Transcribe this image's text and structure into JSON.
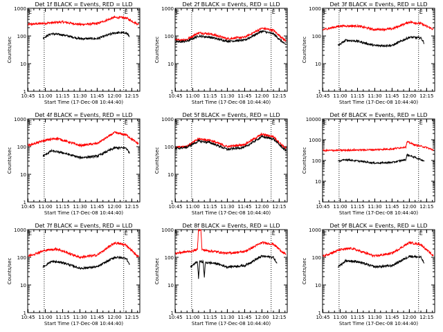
{
  "figure": {
    "background": "#ffffff",
    "axis_color": "#000000",
    "series_colors": {
      "events": "#000000",
      "lld": "#ff0000"
    },
    "panel_titles": [
      "Det 1f BLACK = Events, RED = LLD",
      "Det 2f BLACK = Events, RED = LLD",
      "Det 3f BLACK = Events, RED = LLD",
      "Det 4f BLACK = Events, RED = LLD",
      "Det 5f BLACK = Events, RED = LLD",
      "Det 6f BLACK = Events, RED = LLD",
      "Det 7f BLACK = Events, RED = LLD",
      "Det 8f BLACK = Events, RED = LLD",
      "Det 9f BLACK = Events, RED = LLD"
    ],
    "xlabel": "Start Time (17-Dec-08 10:44:40)",
    "ylabel": "Counts/sec",
    "marker_labels": [
      "E",
      "E"
    ]
  },
  "chart_data": [
    {
      "type": "line",
      "title": "Det 1f BLACK = Events, RED = LLD",
      "xlabel": "Start Time (17-Dec-08 10:44:40)",
      "ylabel": "Counts/sec",
      "x_ticks": [
        "10:45",
        "11:00",
        "11:15",
        "11:30",
        "11:45",
        "12:00",
        "12:15"
      ],
      "y_ticks": [
        "1",
        "10",
        "100",
        "1000"
      ],
      "yscale": "log",
      "ylim": [
        1,
        1000
      ],
      "vlines": [
        "10:59",
        "12:08"
      ],
      "markers": [
        {
          "label": "E",
          "x": "12:08"
        }
      ],
      "series": [
        {
          "color": "#ff0000",
          "range": [
            "10:45",
            "12:21"
          ],
          "x": [
            "10:45",
            "11:00",
            "11:15",
            "11:30",
            "11:45",
            "12:00",
            "12:10",
            "12:20"
          ],
          "values": [
            260,
            290,
            320,
            260,
            280,
            470,
            450,
            270
          ]
        },
        {
          "color": "#000000",
          "range": [
            "10:58",
            "12:13"
          ],
          "x": [
            "10:58",
            "11:05",
            "11:15",
            "11:30",
            "11:45",
            "12:00",
            "12:10",
            "12:13"
          ],
          "values": [
            85,
            120,
            110,
            80,
            80,
            130,
            130,
            100
          ]
        }
      ]
    },
    {
      "type": "line",
      "title": "Det 2f BLACK = Events, RED = LLD",
      "xlabel": "Start Time (17-Dec-08 10:44:40)",
      "ylabel": "Counts/sec",
      "x_ticks": [
        "10:45",
        "11:00",
        "11:15",
        "11:30",
        "11:45",
        "12:00",
        "12:15"
      ],
      "y_ticks": [
        "1",
        "10",
        "100",
        "1000"
      ],
      "yscale": "log",
      "ylim": [
        1,
        1000
      ],
      "vlines": [
        "10:59",
        "12:08"
      ],
      "markers": [
        {
          "label": "E",
          "x": "12:08"
        }
      ],
      "series": [
        {
          "color": "#ff0000",
          "range": [
            "10:45",
            "12:21"
          ],
          "x": [
            "10:45",
            "10:55",
            "11:05",
            "11:15",
            "11:30",
            "11:45",
            "12:00",
            "12:10",
            "12:20"
          ],
          "values": [
            70,
            75,
            130,
            120,
            80,
            90,
            190,
            160,
            70
          ]
        },
        {
          "color": "#000000",
          "range": [
            "10:45",
            "12:21"
          ],
          "x": [
            "10:45",
            "10:55",
            "11:05",
            "11:15",
            "11:30",
            "11:45",
            "12:00",
            "12:10",
            "12:20"
          ],
          "values": [
            60,
            65,
            100,
            90,
            65,
            70,
            150,
            120,
            50
          ]
        }
      ]
    },
    {
      "type": "line",
      "title": "Det 3f BLACK = Events, RED = LLD",
      "xlabel": "Start Time (17-Dec-08 10:44:40)",
      "ylabel": "Counts/sec",
      "x_ticks": [
        "10:45",
        "11:00",
        "11:15",
        "11:30",
        "11:45",
        "12:00",
        "12:15"
      ],
      "y_ticks": [
        "1",
        "10",
        "100",
        "1000"
      ],
      "yscale": "log",
      "ylim": [
        1,
        1000
      ],
      "vlines": [
        "10:59",
        "12:08"
      ],
      "markers": [
        {
          "label": "E",
          "x": "12:08"
        }
      ],
      "series": [
        {
          "color": "#ff0000",
          "range": [
            "10:45",
            "12:21"
          ],
          "x": [
            "10:45",
            "11:00",
            "11:15",
            "11:30",
            "11:45",
            "12:00",
            "12:10",
            "12:20"
          ],
          "values": [
            170,
            230,
            230,
            170,
            180,
            320,
            280,
            180
          ]
        },
        {
          "color": "#000000",
          "range": [
            "10:58",
            "12:13"
          ],
          "x": [
            "10:58",
            "11:05",
            "11:15",
            "11:30",
            "11:45",
            "12:00",
            "12:10",
            "12:13"
          ],
          "values": [
            45,
            70,
            65,
            45,
            45,
            90,
            85,
            55
          ]
        }
      ]
    },
    {
      "type": "line",
      "title": "Det 4f BLACK = Events, RED = LLD",
      "xlabel": "Start Time (17-Dec-08 10:44:40)",
      "ylabel": "Counts/sec",
      "x_ticks": [
        "10:45",
        "11:00",
        "11:15",
        "11:30",
        "11:45",
        "12:00",
        "12:15"
      ],
      "y_ticks": [
        "1",
        "10",
        "100",
        "1000"
      ],
      "yscale": "log",
      "ylim": [
        1,
        1000
      ],
      "vlines": [
        "10:59",
        "12:08"
      ],
      "markers": [
        {
          "label": "E",
          "x": "12:08"
        }
      ],
      "series": [
        {
          "color": "#ff0000",
          "range": [
            "10:45",
            "12:21"
          ],
          "x": [
            "10:45",
            "11:00",
            "11:10",
            "11:30",
            "11:45",
            "12:00",
            "12:10",
            "12:20"
          ],
          "values": [
            110,
            170,
            200,
            110,
            130,
            320,
            270,
            130
          ]
        },
        {
          "color": "#000000",
          "range": [
            "10:58",
            "12:13"
          ],
          "x": [
            "10:58",
            "11:05",
            "11:15",
            "11:30",
            "11:45",
            "12:00",
            "12:10",
            "12:13"
          ],
          "values": [
            45,
            70,
            60,
            40,
            45,
            90,
            90,
            60
          ]
        }
      ]
    },
    {
      "type": "line",
      "title": "Det 5f BLACK = Events, RED = LLD",
      "xlabel": "Start Time (17-Dec-08 10:44:40)",
      "ylabel": "Counts/sec",
      "x_ticks": [
        "10:45",
        "11:00",
        "11:15",
        "11:30",
        "11:45",
        "12:00",
        "12:15"
      ],
      "y_ticks": [
        "1",
        "10",
        "100",
        "1000"
      ],
      "yscale": "log",
      "ylim": [
        1,
        1000
      ],
      "vlines": [
        "10:59",
        "12:08"
      ],
      "markers": [
        {
          "label": "E",
          "x": "12:08"
        }
      ],
      "series": [
        {
          "color": "#ff0000",
          "range": [
            "10:45",
            "12:21"
          ],
          "x": [
            "10:45",
            "10:55",
            "11:05",
            "11:15",
            "11:30",
            "11:45",
            "12:00",
            "12:10",
            "12:20"
          ],
          "values": [
            95,
            105,
            190,
            170,
            100,
            120,
            280,
            230,
            90
          ]
        },
        {
          "color": "#000000",
          "range": [
            "10:45",
            "12:21"
          ],
          "x": [
            "10:45",
            "10:55",
            "11:05",
            "11:15",
            "11:30",
            "11:45",
            "12:00",
            "12:10",
            "12:20"
          ],
          "values": [
            85,
            95,
            160,
            140,
            80,
            95,
            230,
            190,
            75
          ]
        }
      ]
    },
    {
      "type": "line",
      "title": "Det 6f BLACK = Events, RED = LLD",
      "xlabel": "Start Time (17-Dec-08 10:44:40)",
      "ylabel": "Counts/sec",
      "x_ticks": [
        "10:45",
        "11:00",
        "11:15",
        "11:30",
        "11:45",
        "12:00",
        "12:15"
      ],
      "y_ticks": [
        "1",
        "10",
        "100",
        "1000",
        "10000"
      ],
      "yscale": "log",
      "ylim": [
        1,
        10000
      ],
      "vlines": [
        "10:59",
        "12:08"
      ],
      "markers": [
        {
          "label": "E",
          "x": "12:08"
        }
      ],
      "series": [
        {
          "color": "#ff0000",
          "range": [
            "10:45",
            "12:21"
          ],
          "x": [
            "10:45",
            "11:00",
            "11:15",
            "11:30",
            "11:45",
            "11:57",
            "11:58",
            "12:05",
            "12:15",
            "12:20"
          ],
          "values": [
            300,
            310,
            320,
            330,
            360,
            450,
            800,
            560,
            420,
            330
          ]
        },
        {
          "color": "#000000",
          "range": [
            "10:58",
            "12:13"
          ],
          "x": [
            "10:58",
            "11:05",
            "11:15",
            "11:30",
            "11:45",
            "11:57",
            "11:58",
            "12:05",
            "12:13"
          ],
          "values": [
            90,
            110,
            95,
            75,
            80,
            110,
            190,
            140,
            95
          ]
        }
      ]
    },
    {
      "type": "line",
      "title": "Det 7f BLACK = Events, RED = LLD",
      "xlabel": "Start Time (17-Dec-08 10:44:40)",
      "ylabel": "Counts/sec",
      "x_ticks": [
        "10:45",
        "11:00",
        "11:15",
        "11:30",
        "11:45",
        "12:00",
        "12:15"
      ],
      "y_ticks": [
        "1",
        "10",
        "100",
        "1000"
      ],
      "yscale": "log",
      "ylim": [
        1,
        1000
      ],
      "vlines": [
        "10:59",
        "12:08"
      ],
      "markers": [
        {
          "label": "E",
          "x": "12:08"
        }
      ],
      "series": [
        {
          "color": "#ff0000",
          "range": [
            "10:45",
            "12:21"
          ],
          "x": [
            "10:45",
            "11:00",
            "11:10",
            "11:30",
            "11:45",
            "12:00",
            "12:10",
            "12:20"
          ],
          "values": [
            110,
            180,
            200,
            100,
            120,
            330,
            280,
            110
          ]
        },
        {
          "color": "#000000",
          "range": [
            "10:58",
            "12:13"
          ],
          "x": [
            "10:58",
            "11:05",
            "11:15",
            "11:30",
            "11:45",
            "12:00",
            "12:10",
            "12:13"
          ],
          "values": [
            45,
            70,
            65,
            40,
            45,
            100,
            95,
            55
          ]
        }
      ]
    },
    {
      "type": "line",
      "title": "Det 8f BLACK = Events, RED = LLD",
      "xlabel": "Start Time (17-Dec-08 10:44:40)",
      "ylabel": "Counts/sec",
      "x_ticks": [
        "10:45",
        "11:00",
        "11:15",
        "11:30",
        "11:45",
        "12:00",
        "12:15"
      ],
      "y_ticks": [
        "1",
        "10",
        "100",
        "1000"
      ],
      "yscale": "log",
      "ylim": [
        1,
        1000
      ],
      "vlines": [
        "10:59",
        "12:08"
      ],
      "markers": [
        {
          "label": "E",
          "x": "12:08"
        }
      ],
      "series": [
        {
          "color": "#ff0000",
          "range": [
            "10:45",
            "12:21"
          ],
          "x": [
            "10:45",
            "11:00",
            "11:04",
            "11:05",
            "11:07",
            "11:08",
            "11:10",
            "11:20",
            "11:30",
            "11:45",
            "12:00",
            "12:10",
            "12:20"
          ],
          "values": [
            140,
            170,
            190,
            1000,
            1000,
            190,
            180,
            160,
            140,
            160,
            340,
            300,
            130
          ]
        },
        {
          "color": "#000000",
          "range": [
            "10:58",
            "12:13"
          ],
          "x": [
            "10:58",
            "11:04",
            "11:05",
            "11:06",
            "11:09",
            "11:10",
            "11:11",
            "11:20",
            "11:30",
            "11:45",
            "12:00",
            "12:10",
            "12:13"
          ],
          "values": [
            45,
            70,
            18,
            70,
            70,
            20,
            65,
            60,
            45,
            50,
            110,
            100,
            60
          ]
        }
      ]
    },
    {
      "type": "line",
      "title": "Det 9f BLACK = Events, RED = LLD",
      "xlabel": "Start Time (17-Dec-08 10:44:40)",
      "ylabel": "Counts/sec",
      "x_ticks": [
        "10:45",
        "11:00",
        "11:15",
        "11:30",
        "11:45",
        "12:00",
        "12:15"
      ],
      "y_ticks": [
        "1",
        "10",
        "100",
        "1000"
      ],
      "yscale": "log",
      "ylim": [
        1,
        1000
      ],
      "vlines": [
        "10:59",
        "12:08"
      ],
      "markers": [
        {
          "label": "E",
          "x": "12:08"
        }
      ],
      "series": [
        {
          "color": "#ff0000",
          "range": [
            "10:45",
            "12:21"
          ],
          "x": [
            "10:45",
            "11:00",
            "11:10",
            "11:30",
            "11:45",
            "12:00",
            "12:10",
            "12:20"
          ],
          "values": [
            110,
            190,
            210,
            110,
            140,
            340,
            290,
            120
          ]
        },
        {
          "color": "#000000",
          "range": [
            "10:58",
            "12:13"
          ],
          "x": [
            "10:58",
            "11:05",
            "11:15",
            "11:30",
            "11:45",
            "12:00",
            "12:10",
            "12:13"
          ],
          "values": [
            45,
            75,
            70,
            45,
            50,
            110,
            100,
            60
          ]
        }
      ]
    }
  ]
}
